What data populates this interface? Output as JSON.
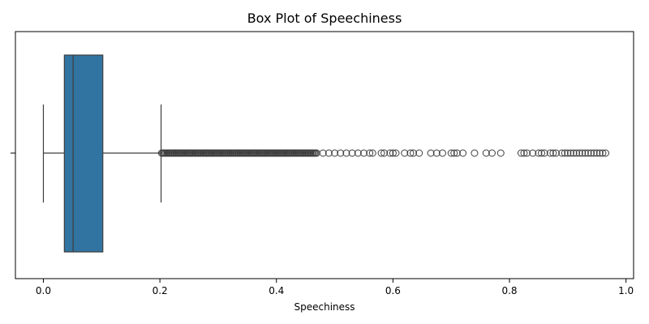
{
  "chart_data": {
    "type": "box",
    "title": "Box Plot of Speechiness",
    "xlabel": "Speechiness",
    "ylabel": "",
    "xlim": [
      -0.048,
      1.013
    ],
    "xticks": [
      0.0,
      0.2,
      0.4,
      0.6,
      0.8,
      1.0
    ],
    "xtick_labels": [
      "0.0",
      "0.2",
      "0.4",
      "0.6",
      "0.8",
      "1.0"
    ],
    "orientation": "horizontal",
    "grid": false,
    "legend": "none",
    "box": {
      "whisker_low": 0.0,
      "q1": 0.036,
      "median": 0.051,
      "q3": 0.102,
      "whisker_high": 0.202
    },
    "outliers_dense": [
      [
        0.203,
        0.47
      ]
    ],
    "outliers": [
      0.48,
      0.49,
      0.5,
      0.51,
      0.52,
      0.53,
      0.54,
      0.55,
      0.56,
      0.565,
      0.58,
      0.585,
      0.595,
      0.6,
      0.605,
      0.62,
      0.63,
      0.635,
      0.645,
      0.665,
      0.675,
      0.685,
      0.7,
      0.705,
      0.71,
      0.72,
      0.74,
      0.76,
      0.77,
      0.785,
      0.82,
      0.825,
      0.83,
      0.84,
      0.85,
      0.855,
      0.86,
      0.87,
      0.875,
      0.88,
      0.89,
      0.895,
      0.9,
      0.905,
      0.91,
      0.915,
      0.92,
      0.925,
      0.93,
      0.935,
      0.94,
      0.945,
      0.95,
      0.955,
      0.96,
      0.965
    ],
    "colors": {
      "box_fill": "#3274a1",
      "line": "#3d3d3d",
      "axis": "#000000",
      "outlier_edge": "#3d3d3d"
    }
  }
}
